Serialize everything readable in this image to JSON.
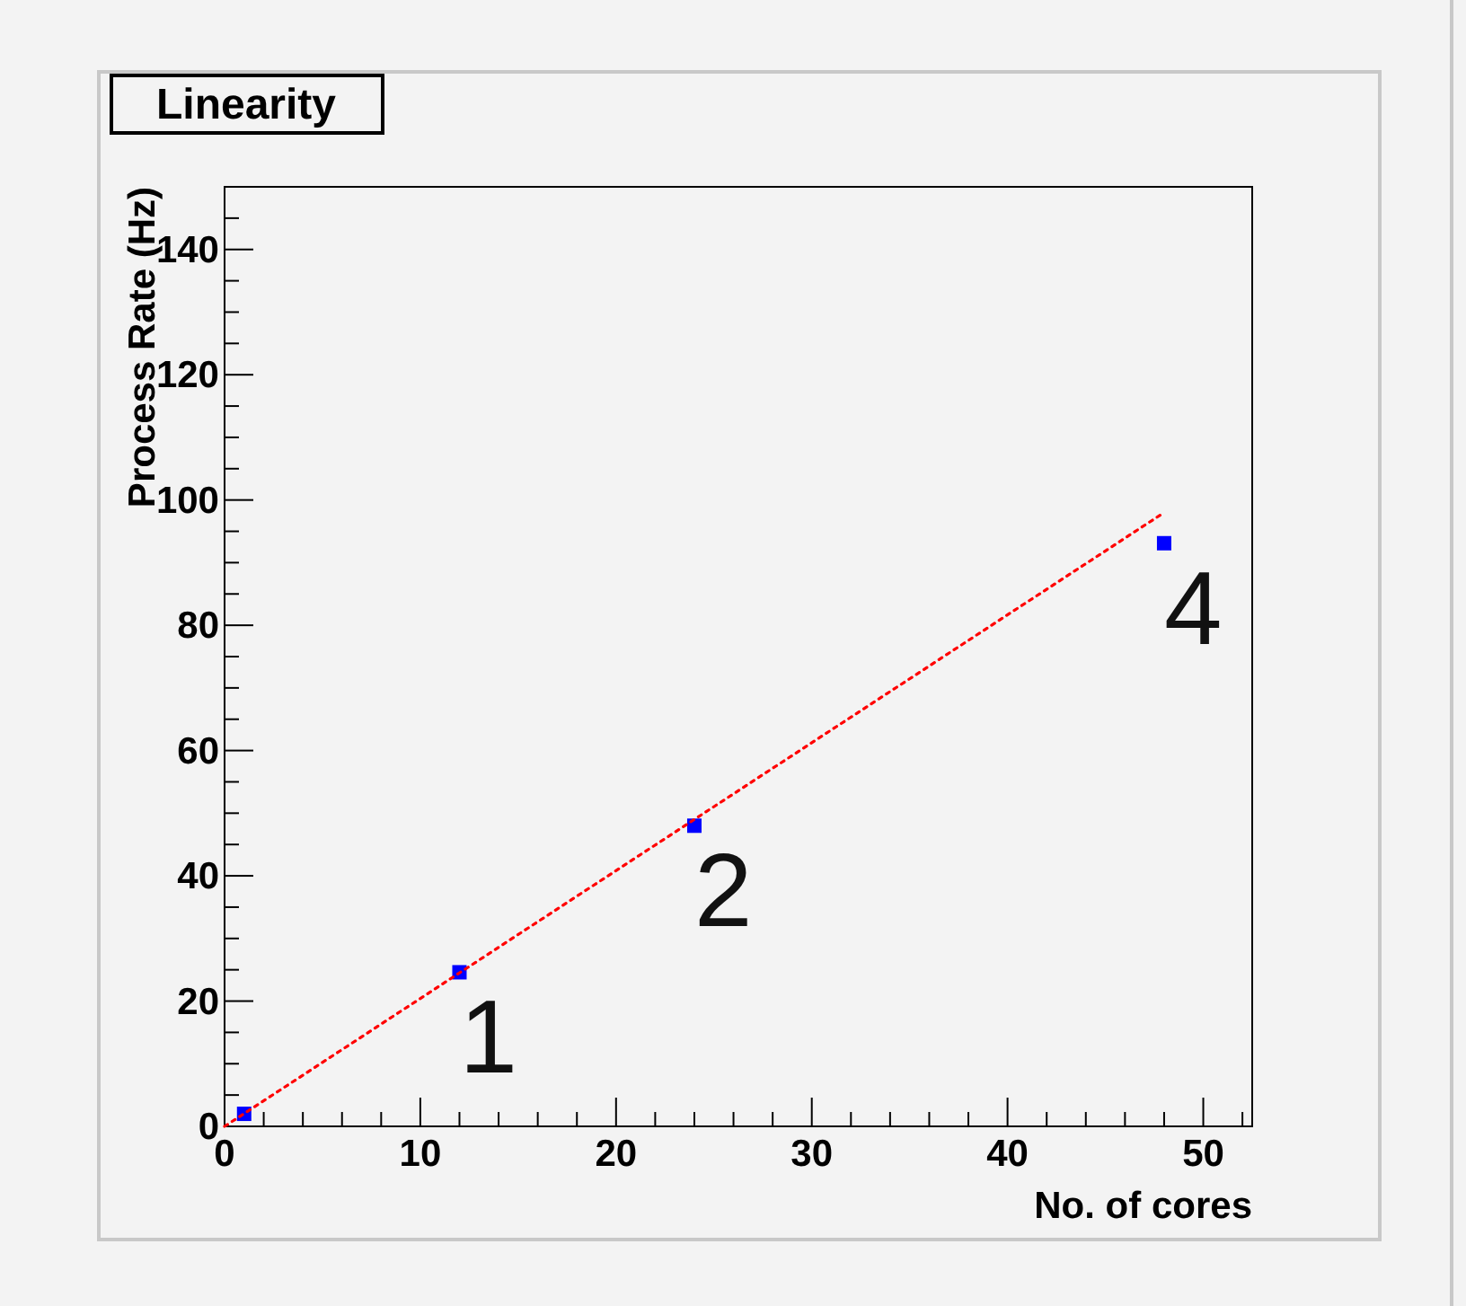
{
  "chart_data": {
    "type": "scatter",
    "title": "Linearity",
    "xlabel": "No. of cores",
    "ylabel": "Process Rate (Hz)",
    "series": [
      {
        "color": "#0000ff",
        "marker": "square",
        "x": [
          1,
          12,
          24,
          48
        ],
        "values": [
          2,
          24.6,
          48,
          93.1
        ]
      },
      {
        "type": "line",
        "color": "#ff0000",
        "marker": "none",
        "line_style": "dotted",
        "x": [
          0,
          48
        ],
        "values": [
          0,
          98
        ]
      }
    ],
    "xlim": [
      0,
      52.5
    ],
    "ylim": [
      0,
      150
    ],
    "xticks": [
      0,
      {
        "value": 2,
        "label": null
      },
      {
        "value": 4,
        "label": null
      },
      {
        "value": 6,
        "label": null
      },
      {
        "value": 8,
        "label": null
      },
      10,
      {
        "value": 12,
        "label": null
      },
      {
        "value": 14,
        "label": null
      },
      {
        "value": 16,
        "label": null
      },
      {
        "value": 18,
        "label": null
      },
      20,
      {
        "value": 22,
        "label": null
      },
      {
        "value": 24,
        "label": null
      },
      {
        "value": 26,
        "label": null
      },
      {
        "value": 28,
        "label": null
      },
      30,
      {
        "value": 32,
        "label": null
      },
      {
        "value": 34,
        "label": null
      },
      {
        "value": 36,
        "label": null
      },
      {
        "value": 38,
        "label": null
      },
      40,
      {
        "value": 42,
        "label": null
      },
      {
        "value": 44,
        "label": null
      },
      {
        "value": 46,
        "label": null
      },
      {
        "value": 48,
        "label": null
      },
      50,
      {
        "value": 52,
        "label": null
      }
    ],
    "yticks": [
      0,
      {
        "value": 5,
        "label": null
      },
      {
        "value": 10,
        "label": null
      },
      {
        "value": 15,
        "label": null
      },
      20,
      {
        "value": 25,
        "label": null
      },
      {
        "value": 30,
        "label": null
      },
      {
        "value": 35,
        "label": null
      },
      40,
      {
        "value": 45,
        "label": null
      },
      {
        "value": 50,
        "label": null
      },
      {
        "value": 55,
        "label": null
      },
      60,
      {
        "value": 65,
        "label": null
      },
      {
        "value": 70,
        "label": null
      },
      {
        "value": 75,
        "label": null
      },
      80,
      {
        "value": 85,
        "label": null
      },
      {
        "value": 90,
        "label": null
      },
      {
        "value": 95,
        "label": null
      },
      100,
      {
        "value": 105,
        "label": null
      },
      {
        "value": 110,
        "label": null
      },
      {
        "value": 115,
        "label": null
      },
      120,
      {
        "value": 125,
        "label": null
      },
      {
        "value": 130,
        "label": null
      },
      {
        "value": 135,
        "label": null
      },
      140,
      {
        "value": 145,
        "label": null
      }
    ],
    "annotations": [
      {
        "text": "1",
        "x": 12,
        "y": 24.6
      },
      {
        "text": "2",
        "x": 24,
        "y": 48
      },
      {
        "text": "4",
        "x": 48,
        "y": 93.1
      }
    ],
    "grid": false
  }
}
